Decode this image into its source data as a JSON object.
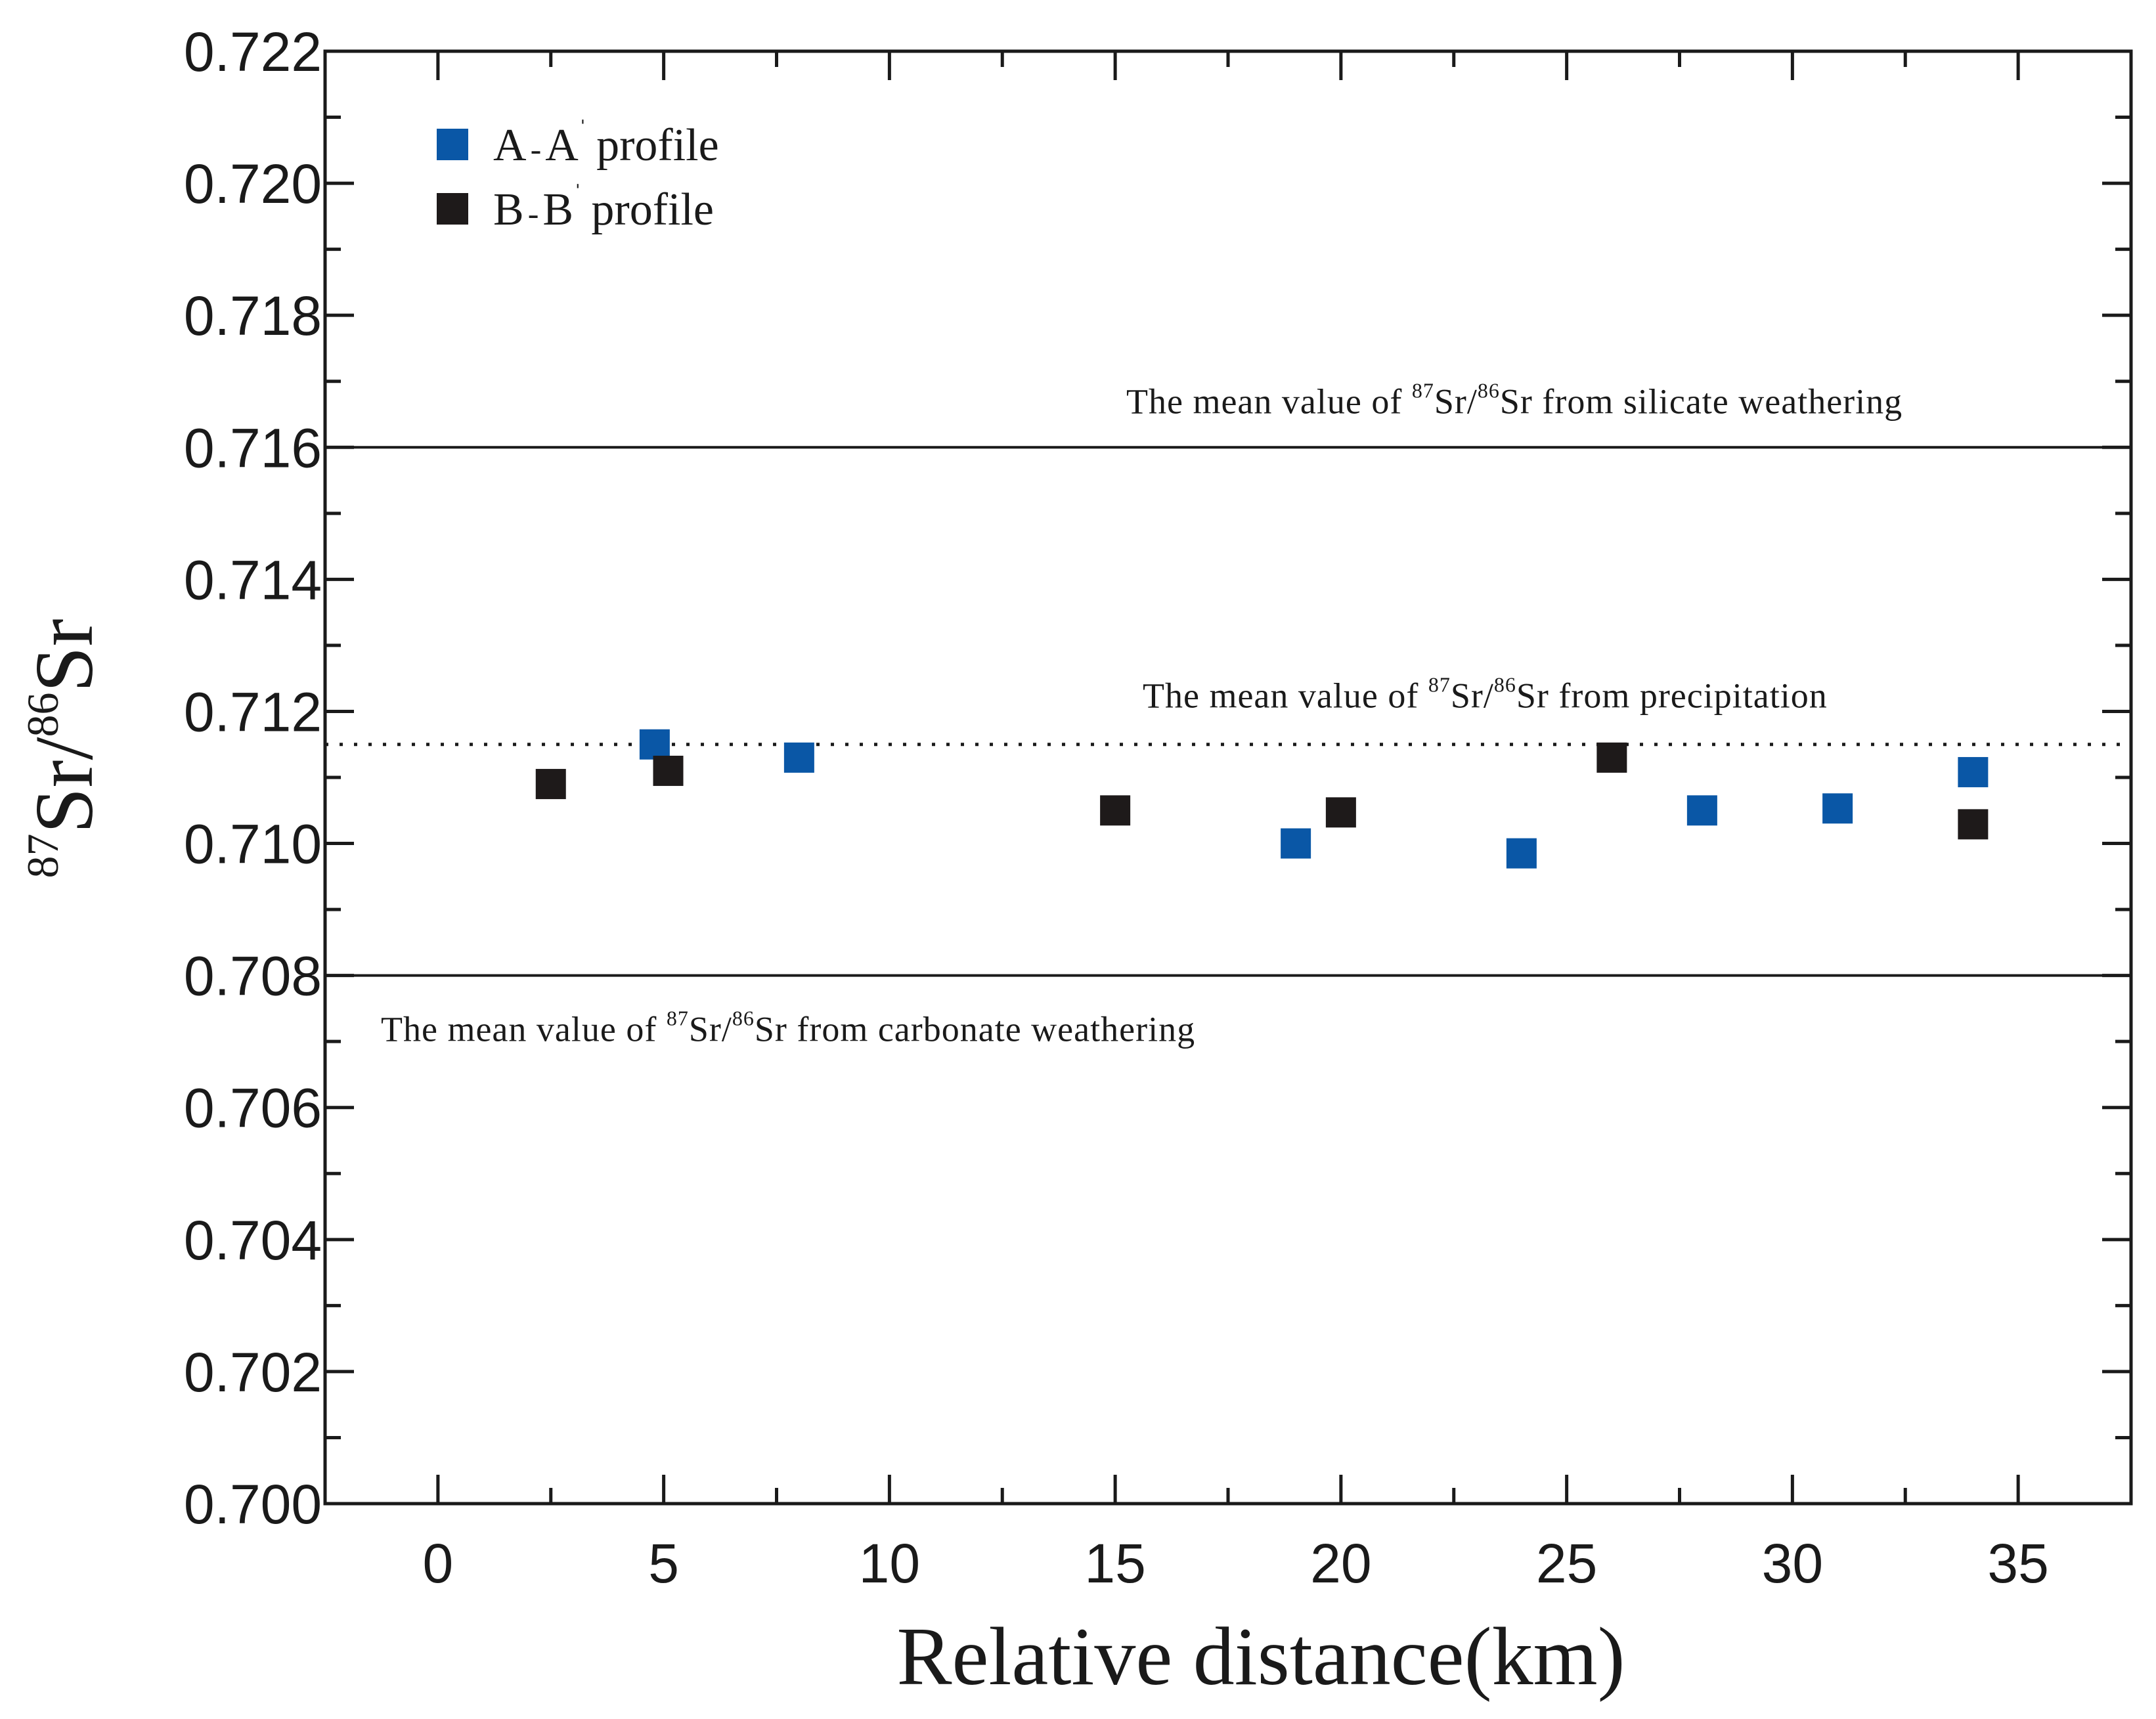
{
  "chart_data": {
    "type": "scatter",
    "title": "",
    "xlabel": "Relative distance(km)",
    "ylabel": {
      "iso1_mass": "87",
      "iso1_symbol": "Sr",
      "separator": "/",
      "iso2_mass": "86",
      "iso2_symbol": "Sr"
    },
    "xlim": [
      -2.5,
      37.5
    ],
    "ylim": [
      0.7,
      0.722
    ],
    "x_ticks": [
      0,
      5,
      10,
      15,
      20,
      25,
      30,
      35
    ],
    "x_tick_labels": [
      "0",
      "5",
      "10",
      "15",
      "20",
      "25",
      "30",
      "35"
    ],
    "y_ticks": [
      0.7,
      0.702,
      0.704,
      0.706,
      0.708,
      0.71,
      0.712,
      0.714,
      0.716,
      0.718,
      0.72,
      0.722
    ],
    "y_tick_labels": [
      "0.700",
      "0.702",
      "0.704",
      "0.706",
      "0.708",
      "0.710",
      "0.712",
      "0.714",
      "0.716",
      "0.718",
      "0.720",
      "0.722"
    ],
    "grid": false,
    "legend_position": "top-left",
    "series": [
      {
        "name_base": "A",
        "name_sep": "-",
        "name_prime": "A",
        "name_suffix": "profile",
        "color": "#0a57a6",
        "marker": "square",
        "points": [
          {
            "x": 4.8,
            "y": 0.7115
          },
          {
            "x": 8.0,
            "y": 0.7113
          },
          {
            "x": 19.0,
            "y": 0.71
          },
          {
            "x": 24.0,
            "y": 0.70985
          },
          {
            "x": 28.0,
            "y": 0.7105
          },
          {
            "x": 31.0,
            "y": 0.71053
          },
          {
            "x": 34.0,
            "y": 0.71108
          }
        ]
      },
      {
        "name_base": "B",
        "name_sep": "-",
        "name_prime": "B",
        "name_suffix": "profile",
        "color": "#1e1a1a",
        "marker": "square",
        "points": [
          {
            "x": 2.5,
            "y": 0.7109
          },
          {
            "x": 5.1,
            "y": 0.7111
          },
          {
            "x": 15.0,
            "y": 0.7105
          },
          {
            "x": 20.0,
            "y": 0.71047
          },
          {
            "x": 26.0,
            "y": 0.7113
          },
          {
            "x": 34.0,
            "y": 0.71029
          }
        ]
      }
    ],
    "reference_lines": [
      {
        "y": 0.716,
        "style": "solid",
        "label_prefix": "The mean value of",
        "iso1": "87",
        "mid": "Sr/",
        "iso2": "86",
        "label_suffix": "Sr from silicate weathering"
      },
      {
        "y": 0.7115,
        "style": "dotted",
        "label_prefix": "The mean value of",
        "iso1": "87",
        "mid": "Sr/",
        "iso2": "86",
        "label_suffix": "Sr from precipitation"
      },
      {
        "y": 0.708,
        "style": "solid",
        "label_prefix": "The mean value of",
        "iso1": "87",
        "mid": "Sr/",
        "iso2": "86",
        "label_suffix": "Sr from carbonate weathering"
      }
    ],
    "prime_mark": "ˈ"
  }
}
